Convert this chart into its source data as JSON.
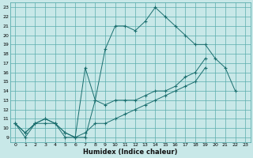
{
  "xlabel": "Humidex (Indice chaleur)",
  "bg_color": "#c8e8e8",
  "grid_color": "#5aadad",
  "line_color": "#1a6e6e",
  "xlim": [
    -0.5,
    23.5
  ],
  "ylim": [
    8.5,
    23.5
  ],
  "xticks": [
    0,
    1,
    2,
    3,
    4,
    5,
    6,
    7,
    8,
    9,
    10,
    11,
    12,
    13,
    14,
    15,
    16,
    17,
    18,
    19,
    20,
    21,
    22,
    23
  ],
  "yticks": [
    9,
    10,
    11,
    12,
    13,
    14,
    15,
    16,
    17,
    18,
    19,
    20,
    21,
    22,
    23
  ],
  "line1_y": [
    10.5,
    9.0,
    10.5,
    10.5,
    10.5,
    9.0,
    9.0,
    9.0,
    13.0,
    18.5,
    21.0,
    21.0,
    20.5,
    21.5,
    23.0,
    22.0,
    21.0,
    20.0,
    19.0,
    19.0,
    17.5,
    16.5,
    14.0,
    null
  ],
  "line2_y": [
    10.5,
    9.5,
    10.5,
    11.0,
    10.5,
    9.5,
    9.0,
    16.5,
    13.0,
    12.5,
    13.0,
    13.0,
    13.0,
    13.5,
    14.0,
    14.0,
    14.5,
    15.5,
    16.0,
    17.5,
    null,
    null,
    null,
    null
  ],
  "line3_y": [
    10.5,
    9.5,
    10.5,
    11.0,
    10.5,
    9.5,
    9.0,
    9.5,
    10.5,
    10.5,
    11.0,
    11.5,
    12.0,
    12.5,
    13.0,
    13.5,
    14.0,
    14.5,
    15.0,
    16.5,
    null,
    null,
    null,
    null
  ]
}
